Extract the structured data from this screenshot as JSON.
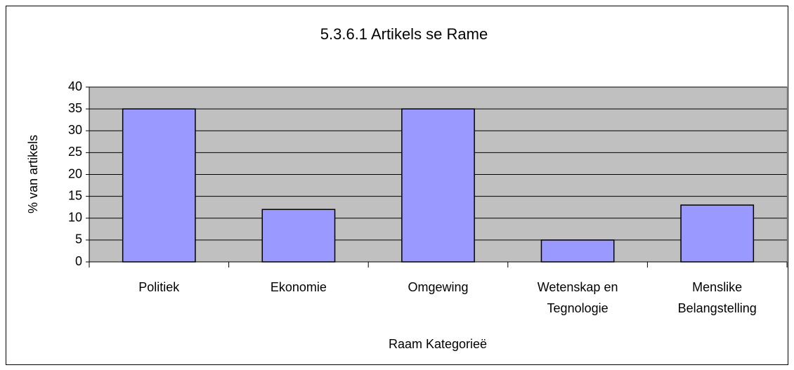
{
  "chart_data": {
    "type": "bar",
    "title": "5.3.6.1 Artikels se Rame",
    "x_label": "Raam Kategorieë",
    "y_label": "% van artikels",
    "categories": [
      "Politiek",
      "Ekonomie",
      "Omgewing",
      "Wetenskap en Tegnologie",
      "Menslike Belangstelling"
    ],
    "values": [
      35,
      12,
      35,
      5,
      13
    ],
    "color": "#9999ff",
    "ylim": [
      0,
      40
    ],
    "yticks": [
      0,
      5,
      10,
      15,
      20,
      25,
      30,
      35,
      40
    ],
    "grid": true
  }
}
